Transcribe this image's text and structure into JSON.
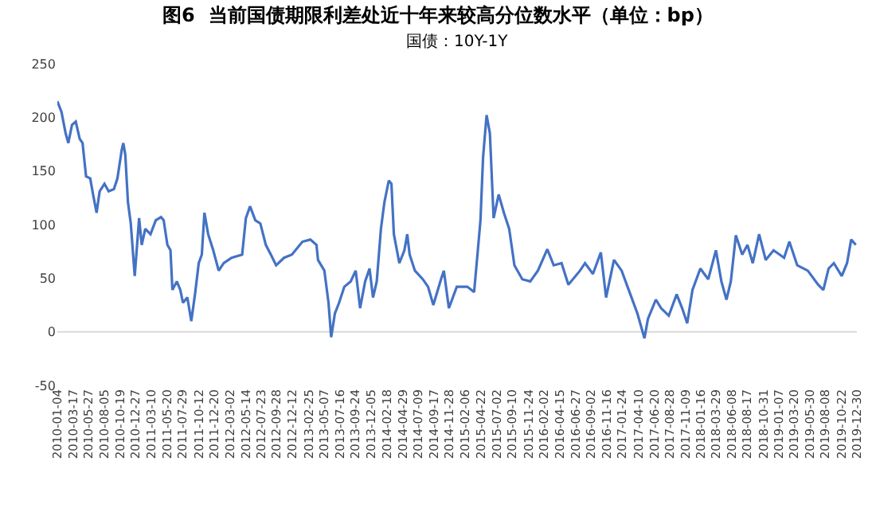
{
  "chart_data": {
    "type": "line",
    "title": "图6  当前国债期限利差处近十年来较高分位数水平（单位：bp）",
    "subtitle": "国债：10Y-1Y",
    "x": [
      "2010-01-04",
      "2010-01-23",
      "2010-02-11",
      "2010-02-23",
      "2010-03-12",
      "2010-03-29",
      "2010-04-16",
      "2010-04-29",
      "2010-05-15",
      "2010-06-03",
      "2010-06-16",
      "2010-07-02",
      "2010-07-16",
      "2010-08-07",
      "2010-08-26",
      "2010-09-19",
      "2010-10-05",
      "2010-10-25",
      "2010-11-01",
      "2010-11-10",
      "2010-11-22",
      "2010-12-05",
      "2010-12-23",
      "2011-01-12",
      "2011-01-24",
      "2011-02-09",
      "2011-03-05",
      "2011-03-29",
      "2011-04-22",
      "2011-05-04",
      "2011-05-21",
      "2011-06-04",
      "2011-06-13",
      "2011-07-03",
      "2011-07-19",
      "2011-07-31",
      "2011-08-20",
      "2011-09-07",
      "2011-09-24",
      "2011-10-11",
      "2011-10-25",
      "2011-11-06",
      "2011-11-23",
      "2011-12-16",
      "2012-01-10",
      "2012-02-02",
      "2012-03-09",
      "2012-04-26",
      "2012-05-13",
      "2012-06-01",
      "2012-06-25",
      "2012-07-18",
      "2012-08-12",
      "2012-09-04",
      "2012-09-28",
      "2012-11-03",
      "2012-12-09",
      "2013-01-26",
      "2013-03-03",
      "2013-03-31",
      "2013-04-07",
      "2013-05-06",
      "2013-05-25",
      "2013-06-06",
      "2013-06-23",
      "2013-07-12",
      "2013-08-05",
      "2013-09-03",
      "2013-09-26",
      "2013-10-16",
      "2013-11-08",
      "2013-11-28",
      "2013-12-14",
      "2013-12-31",
      "2014-01-19",
      "2014-02-04",
      "2014-02-24",
      "2014-03-08",
      "2014-03-19",
      "2014-04-13",
      "2014-05-06",
      "2014-05-19",
      "2014-05-30",
      "2014-06-23",
      "2014-07-29",
      "2014-08-22",
      "2014-09-15",
      "2014-10-20",
      "2014-11-02",
      "2014-11-25",
      "2014-12-31",
      "2015-02-17",
      "2015-03-20",
      "2015-04-06",
      "2015-04-18",
      "2015-04-30",
      "2015-05-16",
      "2015-05-31",
      "2015-06-17",
      "2015-07-10",
      "2015-08-03",
      "2015-08-27",
      "2015-09-20",
      "2015-10-26",
      "2015-12-01",
      "2016-01-05",
      "2016-02-17",
      "2016-03-17",
      "2016-04-22",
      "2016-05-23",
      "2016-07-15",
      "2016-08-07",
      "2016-09-12",
      "2016-10-18",
      "2016-11-11",
      "2016-12-17",
      "2017-01-21",
      "2017-02-26",
      "2017-04-03",
      "2017-05-05",
      "2017-05-21",
      "2017-06-26",
      "2017-07-20",
      "2017-08-24",
      "2017-09-29",
      "2017-10-24",
      "2017-11-16",
      "2017-12-10",
      "2018-01-15",
      "2018-02-20",
      "2018-03-27",
      "2018-04-21",
      "2018-05-14",
      "2018-06-03",
      "2018-06-26",
      "2018-07-25",
      "2018-08-18",
      "2018-09-11",
      "2018-10-10",
      "2018-11-09",
      "2018-12-15",
      "2019-02-01",
      "2019-02-25",
      "2019-04-02",
      "2019-05-20",
      "2019-07-06",
      "2019-07-30",
      "2019-08-23",
      "2019-09-16",
      "2019-10-22",
      "2019-11-15",
      "2019-12-04",
      "2019-12-25"
    ],
    "series": [
      {
        "color": "#4472c4",
        "values": [
          215,
          205,
          185,
          176,
          193,
          196,
          180,
          176,
          145,
          143,
          128,
          111,
          131,
          138,
          131,
          133,
          143,
          170,
          176,
          165,
          121,
          101,
          52,
          106,
          81,
          96,
          91,
          104,
          107,
          104,
          81,
          76,
          39,
          47,
          39,
          27,
          32,
          10,
          35,
          64,
          72,
          111,
          91,
          76,
          57,
          64,
          69,
          72,
          106,
          117,
          104,
          101,
          81,
          72,
          62,
          69,
          72,
          84,
          86,
          81,
          67,
          57,
          27,
          -5,
          17,
          27,
          42,
          47,
          57,
          22,
          47,
          59,
          32,
          47,
          96,
          121,
          141,
          138,
          91,
          64,
          76,
          91,
          72,
          57,
          49,
          42,
          25,
          49,
          57,
          22,
          42,
          42,
          37,
          76,
          104,
          163,
          202,
          185,
          106,
          128,
          111,
          96,
          62,
          49,
          47,
          57,
          77,
          62,
          64,
          44,
          57,
          64,
          54,
          74,
          32,
          67,
          57,
          37,
          17,
          -6,
          12,
          30,
          22,
          15,
          35,
          22,
          8,
          39,
          59,
          49,
          76,
          47,
          30,
          47,
          90,
          72,
          81,
          64,
          91,
          67,
          76,
          69,
          84,
          62,
          57,
          44,
          39,
          59,
          64,
          52,
          64,
          86,
          81
        ]
      }
    ],
    "xlim": [
      "2010-01-04",
      "2019-12-30"
    ],
    "xticks": [
      "2010-01-04",
      "2010-03-17",
      "2010-05-27",
      "2010-08-05",
      "2010-10-19",
      "2010-12-27",
      "2011-03-10",
      "2011-05-20",
      "2011-07-29",
      "2011-10-12",
      "2011-12-20",
      "2012-03-02",
      "2012-05-14",
      "2012-07-23",
      "2012-09-28",
      "2012-12-12",
      "2013-02-25",
      "2013-05-07",
      "2013-07-16",
      "2013-09-24",
      "2013-12-05",
      "2014-02-18",
      "2014-04-29",
      "2014-07-09",
      "2014-09-17",
      "2014-11-28",
      "2015-02-06",
      "2015-04-22",
      "2015-07-02",
      "2015-09-10",
      "2015-11-24",
      "2016-02-02",
      "2016-04-15",
      "2016-06-27",
      "2016-09-02",
      "2016-11-16",
      "2017-01-24",
      "2017-04-10",
      "2017-06-20",
      "2017-08-28",
      "2017-11-09",
      "2018-01-16",
      "2018-03-29",
      "2018-06-08",
      "2018-08-17",
      "2018-10-31",
      "2019-01-07",
      "2019-03-20",
      "2019-05-30",
      "2019-08-08",
      "2019-10-22",
      "2019-12-30"
    ],
    "ylim": [
      -50,
      250
    ],
    "yticks": [
      -50,
      0,
      50,
      100,
      150,
      200,
      250
    ],
    "ref_lines": [
      {
        "axis": "y",
        "value": 0,
        "color": "#d9d9d9"
      }
    ],
    "grid": false,
    "marker": "none",
    "line_style": "solid"
  }
}
